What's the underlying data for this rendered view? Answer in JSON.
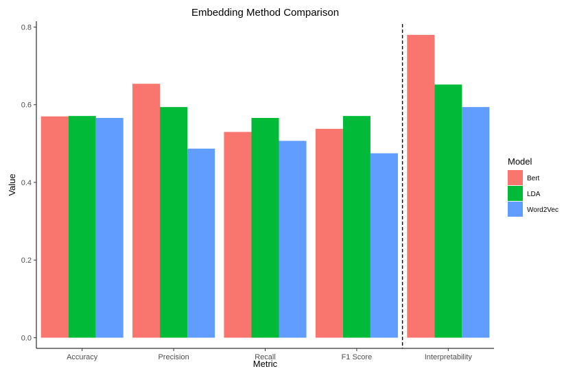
{
  "chart_data": {
    "type": "bar",
    "title": "Embedding Method Comparison",
    "xlabel": "Metric",
    "ylabel": "Value",
    "categories": [
      "Accuracy",
      "Precision",
      "Recall",
      "F1 Score",
      "Interpretability"
    ],
    "series": [
      {
        "name": "Bert",
        "color": "#F8766D",
        "values": [
          0.57,
          0.654,
          0.53,
          0.538,
          0.78
        ]
      },
      {
        "name": "LDA",
        "color": "#00BA38",
        "values": [
          0.571,
          0.594,
          0.566,
          0.571,
          0.652
        ]
      },
      {
        "name": "Word2Vec",
        "color": "#619CFF",
        "values": [
          0.566,
          0.487,
          0.507,
          0.475,
          0.594
        ]
      }
    ],
    "ylim": [
      -0.0275,
      0.815
    ],
    "yticks": [
      0.0,
      0.2,
      0.4,
      0.6,
      0.8
    ],
    "ytick_labels": [
      "0.0",
      "0.2",
      "0.4",
      "0.6",
      "0.8"
    ],
    "grid": false,
    "legend": {
      "title": "Model",
      "position": "right"
    },
    "annotations": [
      {
        "type": "vertical-dashed-line",
        "between": [
          "F1 Score",
          "Interpretability"
        ]
      }
    ]
  }
}
